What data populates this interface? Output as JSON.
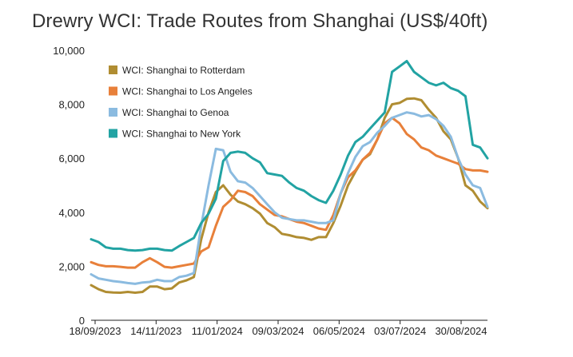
{
  "chart_data": {
    "type": "line",
    "title": "Drewry WCI: Trade Routes from Shanghai (US$/40ft)",
    "xlabel": "",
    "ylabel": "",
    "ylim": [
      0,
      10000
    ],
    "yticks": [
      0,
      2000,
      4000,
      6000,
      8000,
      10000
    ],
    "ytick_labels": [
      "0",
      "2,000",
      "4,000",
      "6,000",
      "8,000",
      "10,000"
    ],
    "xtick_labels": [
      "18/09/2023",
      "14/11/2023",
      "11/01/2024",
      "09/03/2024",
      "06/05/2024",
      "03/07/2024",
      "30/08/2024"
    ],
    "legend_position": "top-left",
    "grid": false,
    "x": [
      "2023-09-18",
      "2023-09-25",
      "2023-10-02",
      "2023-10-09",
      "2023-10-16",
      "2023-10-23",
      "2023-10-30",
      "2023-11-06",
      "2023-11-13",
      "2023-11-20",
      "2023-11-27",
      "2023-12-04",
      "2023-12-11",
      "2023-12-18",
      "2023-12-25",
      "2024-01-01",
      "2024-01-08",
      "2024-01-15",
      "2024-01-22",
      "2024-01-29",
      "2024-02-05",
      "2024-02-12",
      "2024-02-19",
      "2024-02-26",
      "2024-03-04",
      "2024-03-11",
      "2024-03-18",
      "2024-03-25",
      "2024-04-01",
      "2024-04-08",
      "2024-04-15",
      "2024-04-22",
      "2024-04-29",
      "2024-05-06",
      "2024-05-13",
      "2024-05-20",
      "2024-05-27",
      "2024-06-03",
      "2024-06-10",
      "2024-06-17",
      "2024-06-24",
      "2024-07-01",
      "2024-07-08",
      "2024-07-15",
      "2024-07-22",
      "2024-07-29",
      "2024-08-05",
      "2024-08-12",
      "2024-08-19",
      "2024-08-26",
      "2024-09-02",
      "2024-09-09",
      "2024-09-16",
      "2024-09-23",
      "2024-09-30"
    ],
    "series": [
      {
        "name": "WCI: Shanghai to Rotterdam",
        "color": "#b08d32",
        "values": [
          1300,
          1150,
          1050,
          1030,
          1020,
          1050,
          1020,
          1050,
          1250,
          1250,
          1150,
          1180,
          1400,
          1480,
          1600,
          3000,
          4000,
          4750,
          5000,
          4650,
          4400,
          4300,
          4150,
          3950,
          3600,
          3450,
          3200,
          3150,
          3080,
          3050,
          2980,
          3080,
          3080,
          3600,
          4250,
          5000,
          5500,
          5950,
          6150,
          6700,
          7500,
          8000,
          8050,
          8200,
          8220,
          8150,
          7800,
          7500,
          7000,
          6700,
          6000,
          5000,
          4800,
          4400,
          4150
        ]
      },
      {
        "name": "WCI: Shanghai to Los Angeles",
        "color": "#e8803a",
        "values": [
          2150,
          2050,
          2000,
          2000,
          1980,
          1950,
          1950,
          2150,
          2300,
          2150,
          1980,
          1950,
          2000,
          2050,
          2100,
          2550,
          2700,
          3500,
          4200,
          4450,
          4800,
          4750,
          4600,
          4300,
          4100,
          3900,
          3850,
          3750,
          3650,
          3600,
          3500,
          3400,
          3350,
          3900,
          4700,
          5300,
          5550,
          5950,
          6200,
          6700,
          7300,
          7500,
          7300,
          6900,
          6700,
          6400,
          6300,
          6100,
          6000,
          5900,
          5800,
          5600,
          5550,
          5550,
          5500
        ]
      },
      {
        "name": "WCI: Shanghai to Genoa",
        "color": "#8bbbe0",
        "values": [
          1700,
          1550,
          1500,
          1450,
          1420,
          1380,
          1350,
          1400,
          1420,
          1500,
          1450,
          1450,
          1600,
          1650,
          1750,
          3500,
          5000,
          6350,
          6300,
          5500,
          5150,
          5100,
          4900,
          4600,
          4300,
          4000,
          3800,
          3750,
          3700,
          3700,
          3650,
          3600,
          3600,
          3700,
          4700,
          5450,
          6050,
          6450,
          6600,
          6950,
          7200,
          7500,
          7600,
          7700,
          7650,
          7550,
          7600,
          7450,
          7200,
          6800,
          6000,
          5400,
          5000,
          4900,
          4200
        ]
      },
      {
        "name": "WCI: Shanghai to New York",
        "color": "#22a3a3",
        "values": [
          3000,
          2900,
          2700,
          2650,
          2650,
          2600,
          2580,
          2600,
          2650,
          2650,
          2600,
          2580,
          2750,
          2900,
          3050,
          3600,
          3950,
          4500,
          5900,
          6200,
          6250,
          6200,
          6000,
          5850,
          5450,
          5400,
          5350,
          5100,
          4900,
          4800,
          4600,
          4450,
          4350,
          4800,
          5400,
          6100,
          6600,
          6800,
          7100,
          7400,
          7700,
          9200,
          9400,
          9600,
          9200,
          9000,
          8800,
          8700,
          8800,
          8600,
          8500,
          8300,
          6500,
          6400,
          6000
        ]
      }
    ]
  }
}
